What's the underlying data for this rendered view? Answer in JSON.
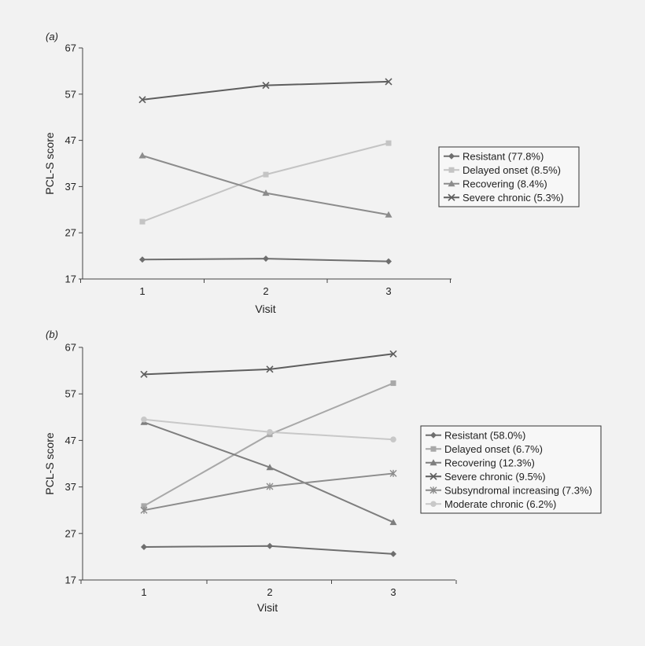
{
  "chart_data": [
    {
      "type": "line",
      "panel_label_prefix": "(",
      "panel_letter": "a",
      "panel_label_suffix": ")",
      "xlabel": "Visit",
      "ylabel": "PCL-S score",
      "categories": [
        "1",
        "2",
        "3"
      ],
      "yticks": [
        17,
        27,
        37,
        47,
        57,
        67
      ],
      "ylim": [
        17,
        67
      ],
      "grid": false,
      "legend_position": "right",
      "series": [
        {
          "name": "Resistant (77.8%)",
          "values": [
            21.2,
            21.4,
            20.8
          ],
          "color": "#6e6e6e",
          "marker": "diamond"
        },
        {
          "name": "Delayed onset (8.5%)",
          "values": [
            29.4,
            39.6,
            46.4
          ],
          "color": "#c4c4c4",
          "marker": "square"
        },
        {
          "name": "Recovering (8.4%)",
          "values": [
            43.7,
            35.6,
            30.9
          ],
          "color": "#8c8c8c",
          "marker": "triangle"
        },
        {
          "name": "Severe chronic (5.3%)",
          "values": [
            55.8,
            58.9,
            59.7
          ],
          "color": "#5e5e5e",
          "marker": "x"
        }
      ]
    },
    {
      "type": "line",
      "panel_label_prefix": "(",
      "panel_letter": "b",
      "panel_label_suffix": ")",
      "xlabel": "Visit",
      "ylabel": "PCL-S score",
      "categories": [
        "1",
        "2",
        "3"
      ],
      "yticks": [
        17,
        27,
        37,
        47,
        57,
        67
      ],
      "ylim": [
        17,
        67
      ],
      "grid": false,
      "legend_position": "right",
      "series": [
        {
          "name": "Resistant (58.0%)",
          "values": [
            24.1,
            24.3,
            22.6
          ],
          "color": "#6e6e6e",
          "marker": "diamond"
        },
        {
          "name": "Delayed onset (6.7%)",
          "values": [
            32.9,
            48.3,
            59.3
          ],
          "color": "#a8a8a8",
          "marker": "square"
        },
        {
          "name": "Recovering (12.3%)",
          "values": [
            50.9,
            41.2,
            29.4
          ],
          "color": "#7e7e7e",
          "marker": "triangle"
        },
        {
          "name": "Severe chronic (9.5%)",
          "values": [
            61.2,
            62.3,
            65.6
          ],
          "color": "#5e5e5e",
          "marker": "x"
        },
        {
          "name": "Subsyndromal increasing (7.3%)",
          "values": [
            32.0,
            37.1,
            39.9
          ],
          "color": "#8c8c8c",
          "marker": "star"
        },
        {
          "name": "Moderate chronic (6.2%)",
          "values": [
            51.5,
            48.8,
            47.2
          ],
          "color": "#c8c8c8",
          "marker": "circle"
        }
      ]
    }
  ]
}
